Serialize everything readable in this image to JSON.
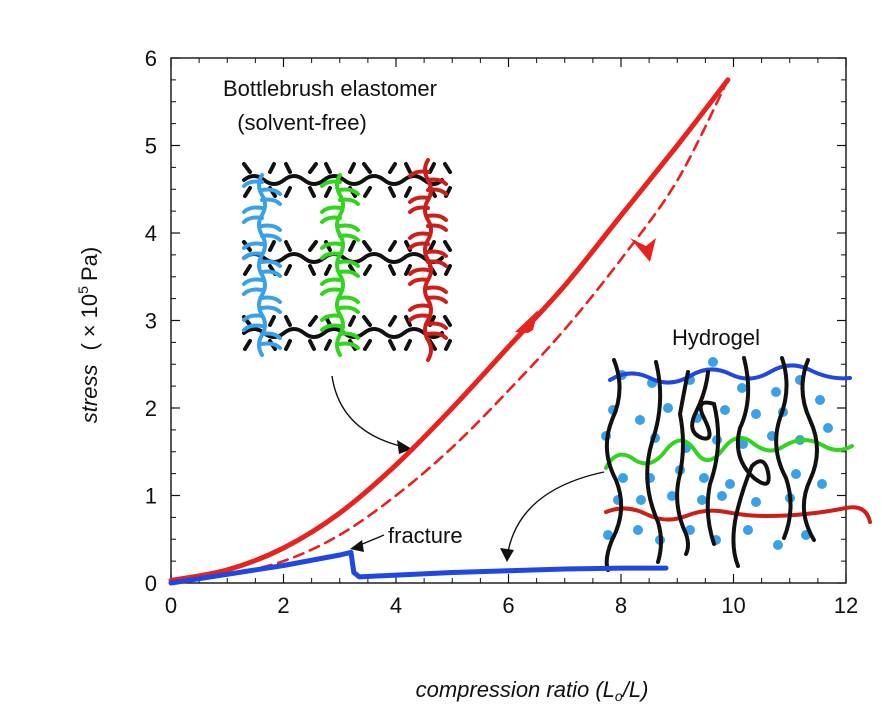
{
  "chart_data": {
    "type": "line",
    "xlabel": {
      "prefix": "compression ratio (",
      "num": "L",
      "num_sub": "o",
      "sep": "/",
      "den": "L",
      "suffix": ")"
    },
    "ylabel": {
      "main": "stress",
      "unit_open": "(",
      "unit_times": "×",
      "unit_base": "10",
      "unit_exp": "5",
      "unit_name": "Pa)"
    },
    "xlim": [
      0,
      12
    ],
    "ylim": [
      0,
      6
    ],
    "xticks": [
      0,
      2,
      4,
      6,
      8,
      10,
      12
    ],
    "yticks": [
      0,
      1,
      2,
      3,
      4,
      5,
      6
    ],
    "grid": false,
    "series": [
      {
        "name": "Bottlebrush elastomer loading",
        "color": "#e8231f",
        "style": "solid",
        "x": [
          0,
          1,
          2,
          3,
          4,
          5,
          6,
          7,
          8,
          9,
          9.9
        ],
        "y": [
          0.03,
          0.15,
          0.4,
          0.8,
          1.35,
          2.0,
          2.7,
          3.4,
          4.2,
          5.0,
          5.75
        ]
      },
      {
        "name": "Bottlebrush elastomer unloading",
        "color": "#e8231f",
        "style": "dashed",
        "x": [
          9.9,
          9,
          8,
          7,
          6,
          5,
          4,
          3,
          2,
          1,
          0
        ],
        "y": [
          5.75,
          4.6,
          3.7,
          2.9,
          2.2,
          1.55,
          1.0,
          0.55,
          0.25,
          0.1,
          0.02
        ]
      },
      {
        "name": "Hydrogel",
        "color": "#2048e0",
        "style": "solid",
        "x": [
          0,
          1,
          2,
          3,
          3.2,
          3.25,
          3.35,
          4,
          5,
          6,
          7,
          8,
          8.8
        ],
        "y": [
          0,
          0.1,
          0.2,
          0.32,
          0.35,
          0.12,
          0.07,
          0.09,
          0.12,
          0.14,
          0.16,
          0.17,
          0.17
        ]
      }
    ],
    "annotations": {
      "bottlebrush_title": "Bottlebrush elastomer",
      "bottlebrush_subtitle": "(solvent-free)",
      "hydrogel_title": "Hydrogel",
      "fracture_label": "fracture"
    }
  },
  "colors": {
    "red": "#e8231f",
    "blue": "#2048e0",
    "black": "#111111",
    "light_blue": "#3aa0e8",
    "green": "#33d41f",
    "dark_red": "#cc1f1a"
  }
}
